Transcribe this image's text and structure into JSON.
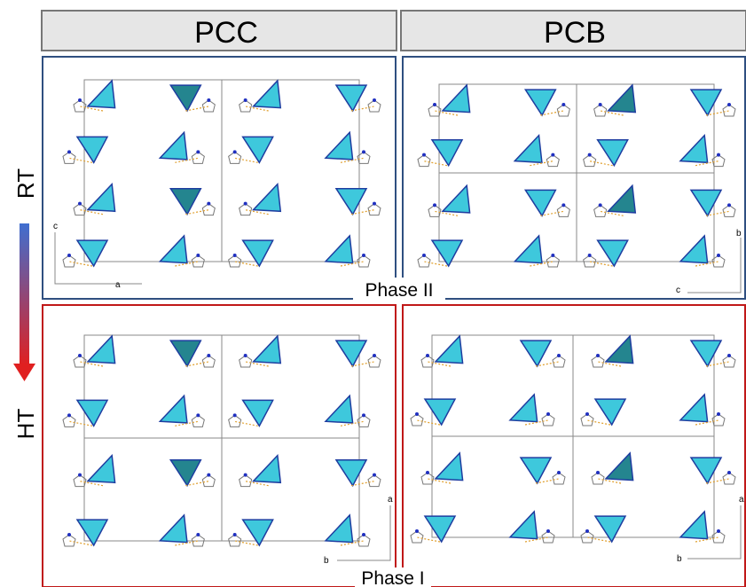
{
  "columns": [
    "PCC",
    "PCB"
  ],
  "rows": [
    {
      "label": "RT",
      "phase": "Phase II",
      "panels": [
        {
          "axes": [
            "c",
            "a"
          ]
        },
        {
          "axes": [
            "b",
            "c"
          ]
        }
      ]
    },
    {
      "label": "HT",
      "phase": "Phase I",
      "panels": [
        {
          "axes": [
            "a",
            "b"
          ]
        },
        {
          "axes": [
            "a",
            "b"
          ]
        }
      ]
    }
  ]
}
